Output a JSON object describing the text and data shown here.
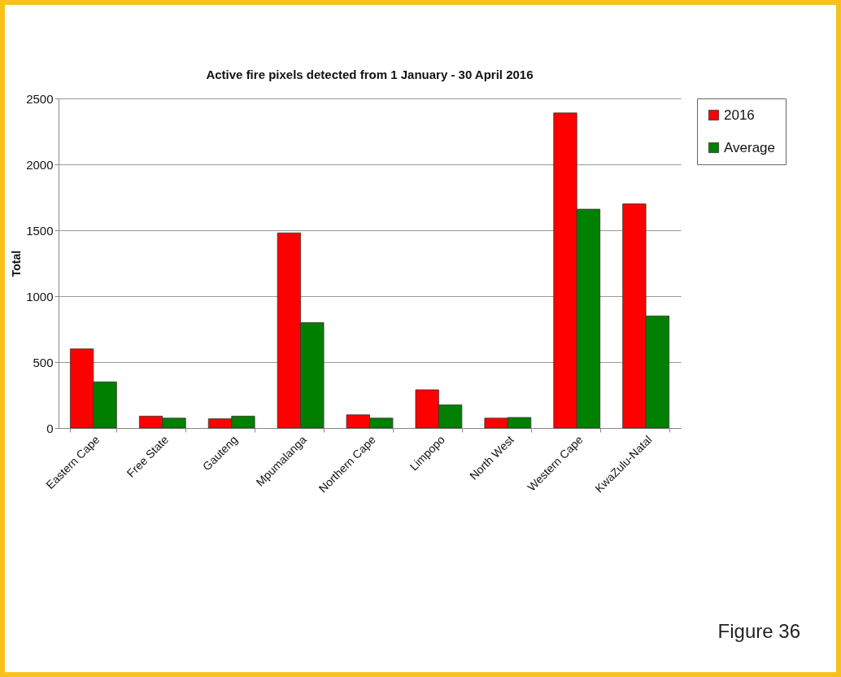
{
  "chart_data": {
    "type": "bar",
    "title": "Active fire pixels detected from 1 January - 30 April 2016",
    "ylabel": "Total",
    "categories": [
      "Eastern Cape",
      "Free State",
      "Gauteng",
      "Mpumalanga",
      "Northern Cape",
      "Limpopo",
      "North West",
      "Western Cape",
      "KwaZulu-Natal"
    ],
    "series": [
      {
        "name": "2016",
        "color": "#ff0000",
        "values": [
          600,
          90,
          70,
          1480,
          100,
          290,
          75,
          2390,
          1700
        ]
      },
      {
        "name": "Average",
        "color": "#008000",
        "values": [
          350,
          75,
          90,
          800,
          75,
          175,
          80,
          1660,
          850
        ]
      }
    ],
    "ylim": [
      0,
      2500
    ],
    "yticks": [
      0,
      500,
      1000,
      1500,
      2000,
      2500
    ],
    "grid": "y",
    "legend": "right",
    "annotations": [
      "Figure 36"
    ]
  }
}
